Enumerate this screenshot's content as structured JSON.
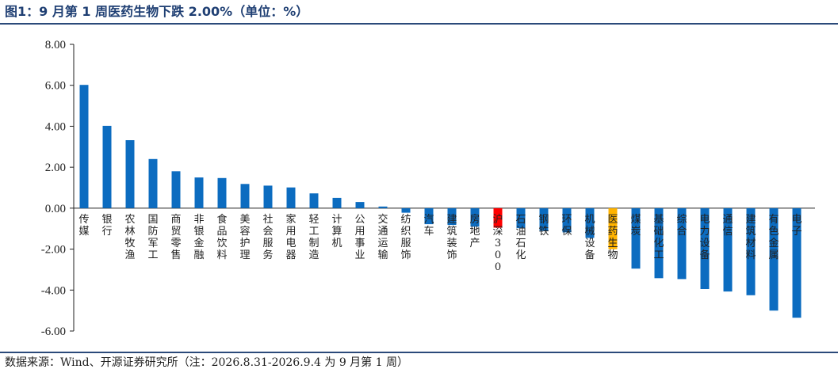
{
  "title": "图1：9 月第 1 周医药生物下跌 2.00%（单位：%）",
  "source": "数据来源：Wind、开源证券研究所（注：2026.8.31-2026.9.4 为 9 月第 1 周）",
  "colors": {
    "default": "#0c6cc0",
    "highlight_index": "#ff0000",
    "highlight_sector": "#ffb300",
    "title": "#1f3f73",
    "rule": "#2b4a7a"
  },
  "chart_data": {
    "type": "bar",
    "title": "9 月第 1 周医药生物下跌 2.00%",
    "xlabel": "",
    "ylabel": "",
    "unit": "%",
    "ylim": [
      -6,
      8
    ],
    "yticks": [
      "8.00",
      "6.00",
      "4.00",
      "2.00",
      "0.00",
      "-2.00",
      "-4.00",
      "-6.00"
    ],
    "grid": false,
    "categories": [
      "传媒",
      "银行",
      "农林牧渔",
      "国防军工",
      "商贸零售",
      "非银金融",
      "食品饮料",
      "美容护理",
      "社会服务",
      "家用电器",
      "轻工制造",
      "计算机",
      "公用事业",
      "交通运输",
      "纺织服饰",
      "汽车",
      "建筑装饰",
      "房地产",
      "沪深300",
      "石油石化",
      "钢铁",
      "环保",
      "机械设备",
      "医药生物",
      "煤炭",
      "基础化工",
      "综合",
      "电力设备",
      "通信",
      "建筑材料",
      "有色金属",
      "电子"
    ],
    "values": [
      6.02,
      4.02,
      3.32,
      2.4,
      1.8,
      1.5,
      1.47,
      1.18,
      1.1,
      1.01,
      0.72,
      0.5,
      0.3,
      0.08,
      -0.22,
      -0.78,
      -0.82,
      -0.9,
      -0.95,
      -0.98,
      -1.1,
      -1.18,
      -1.45,
      -2.0,
      -2.95,
      -3.42,
      -3.46,
      -3.95,
      -4.07,
      -4.25,
      -5.0,
      -5.35
    ],
    "highlight": {
      "沪深300": "highlight_index",
      "医药生物": "highlight_sector"
    }
  }
}
